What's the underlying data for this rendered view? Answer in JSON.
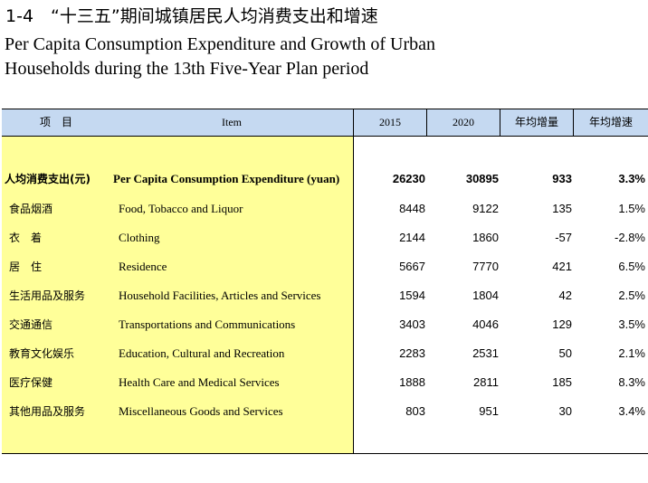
{
  "title": {
    "zh": "1-4　“十三五”期间城镇居民人均消费支出和增速",
    "en_line1": "Per Capita Consumption Expenditure and Growth of Urban",
    "en_line2": "Households during the 13th Five-Year Plan period"
  },
  "table": {
    "headers": {
      "item_zh": "项　目",
      "item_en": "Item",
      "y2015": "2015",
      "y2020": "2020",
      "annual_increase": "年均增量",
      "annual_growth": "年均增速"
    },
    "rows": [
      {
        "zh": "人均消费支出(元)",
        "en": "Per Capita Consumption Expenditure (yuan)",
        "v2015": "26230",
        "v2020": "30895",
        "inc": "933",
        "growth": "3.3%"
      },
      {
        "zh": "食品烟酒",
        "en": "Food, Tobacco and Liquor",
        "v2015": "8448",
        "v2020": "9122",
        "inc": "135",
        "growth": "1.5%"
      },
      {
        "zh": "衣　着",
        "en": "Clothing",
        "v2015": "2144",
        "v2020": "1860",
        "inc": "-57",
        "growth": "-2.8%"
      },
      {
        "zh": "居　住",
        "en": "Residence",
        "v2015": "5667",
        "v2020": "7770",
        "inc": "421",
        "growth": "6.5%"
      },
      {
        "zh": "生活用品及服务",
        "en": "Household Facilities, Articles and Services",
        "v2015": "1594",
        "v2020": "1804",
        "inc": "42",
        "growth": "2.5%"
      },
      {
        "zh": "交通通信",
        "en": "Transportations and Communications",
        "v2015": "3403",
        "v2020": "4046",
        "inc": "129",
        "growth": "3.5%"
      },
      {
        "zh": "教育文化娱乐",
        "en": "Education, Cultural and Recreation",
        "v2015": "2283",
        "v2020": "2531",
        "inc": "50",
        "growth": "2.1%"
      },
      {
        "zh": "医疗保健",
        "en": "Health Care and Medical Services",
        "v2015": "1888",
        "v2020": "2811",
        "inc": "185",
        "growth": "8.3%"
      },
      {
        "zh": "其他用品及服务",
        "en": "Miscellaneous Goods and Services",
        "v2015": "803",
        "v2020": "951",
        "inc": "30",
        "growth": "3.4%"
      }
    ]
  },
  "colors": {
    "header_bg": "#c5d9f1",
    "item_column_bg": "#ffff99"
  }
}
